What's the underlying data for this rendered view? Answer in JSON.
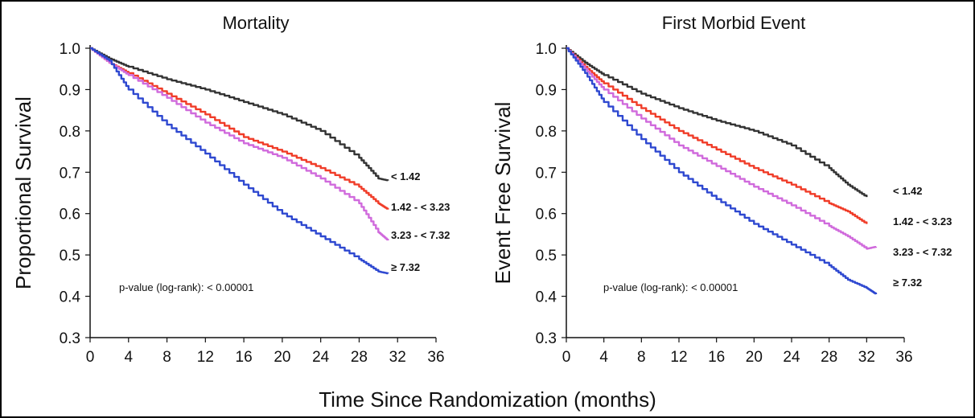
{
  "shared_xlabel": "Time Since Randomization (months)",
  "chart_data": [
    {
      "type": "line",
      "title": "Mortality",
      "xlabel": "Time Since Randomization (months)",
      "ylabel": "Proportional Survival",
      "xlim": [
        0,
        36
      ],
      "ylim": [
        0.3,
        1.0
      ],
      "xticks": [
        0,
        4,
        8,
        12,
        16,
        20,
        24,
        28,
        32,
        36
      ],
      "yticks": [
        "0.3",
        "0.4",
        "0.5",
        "0.6",
        "0.7",
        "0.8",
        "0.9",
        "1.0"
      ],
      "annotation": "p-value (log-rank): < 0.00001",
      "grid": false,
      "series": [
        {
          "name": "< 1.42",
          "color": "#333333",
          "x": [
            0,
            2,
            4,
            8,
            12,
            16,
            20,
            24,
            28,
            30,
            31
          ],
          "y": [
            1.0,
            0.975,
            0.955,
            0.925,
            0.9,
            0.87,
            0.84,
            0.8,
            0.735,
            0.685,
            0.68
          ]
        },
        {
          "name": "1.42 - < 3.23",
          "color": "#f03c28",
          "x": [
            0,
            2,
            4,
            8,
            12,
            16,
            20,
            24,
            28,
            30,
            31
          ],
          "y": [
            1.0,
            0.965,
            0.94,
            0.89,
            0.84,
            0.785,
            0.75,
            0.71,
            0.665,
            0.625,
            0.61
          ]
        },
        {
          "name": "3.23 - < 7.32",
          "color": "#d06adc",
          "x": [
            0,
            2,
            4,
            8,
            12,
            16,
            20,
            24,
            28,
            30,
            31
          ],
          "y": [
            1.0,
            0.965,
            0.935,
            0.88,
            0.82,
            0.77,
            0.735,
            0.685,
            0.625,
            0.555,
            0.535
          ]
        },
        {
          "name": "≥ 7.32",
          "color": "#2e48d0",
          "x": [
            0,
            2,
            4,
            8,
            12,
            16,
            20,
            24,
            28,
            30,
            31
          ],
          "y": [
            1.0,
            0.97,
            0.9,
            0.815,
            0.745,
            0.67,
            0.6,
            0.545,
            0.49,
            0.46,
            0.455
          ]
        }
      ]
    },
    {
      "type": "line",
      "title": "First Morbid Event",
      "xlabel": "Time Since Randomization (months)",
      "ylabel": "Event Free Survival",
      "xlim": [
        0,
        36
      ],
      "ylim": [
        0.3,
        1.0
      ],
      "xticks": [
        0,
        4,
        8,
        12,
        16,
        20,
        24,
        28,
        32,
        36
      ],
      "yticks": [
        "0.3",
        "0.4",
        "0.5",
        "0.6",
        "0.7",
        "0.8",
        "0.9",
        "1.0"
      ],
      "annotation": "p-value (log-rank): < 0.00001",
      "grid": false,
      "series": [
        {
          "name": "< 1.42",
          "color": "#333333",
          "x": [
            0,
            2,
            4,
            8,
            12,
            16,
            20,
            24,
            28,
            30,
            32
          ],
          "y": [
            1.0,
            0.965,
            0.935,
            0.89,
            0.855,
            0.825,
            0.8,
            0.765,
            0.71,
            0.67,
            0.64
          ]
        },
        {
          "name": "1.42 - < 3.23",
          "color": "#f03c28",
          "x": [
            0,
            2,
            4,
            8,
            12,
            16,
            20,
            24,
            28,
            30,
            32
          ],
          "y": [
            1.0,
            0.955,
            0.915,
            0.855,
            0.8,
            0.755,
            0.71,
            0.67,
            0.625,
            0.605,
            0.575
          ]
        },
        {
          "name": "3.23 - < 7.32",
          "color": "#d06adc",
          "x": [
            0,
            2,
            4,
            8,
            12,
            16,
            20,
            24,
            28,
            30,
            32,
            33
          ],
          "y": [
            1.0,
            0.95,
            0.9,
            0.83,
            0.765,
            0.715,
            0.665,
            0.62,
            0.57,
            0.545,
            0.515,
            0.52
          ]
        },
        {
          "name": "≥ 7.32",
          "color": "#2e48d0",
          "x": [
            0,
            2,
            4,
            8,
            12,
            16,
            20,
            24,
            28,
            30,
            32,
            33
          ],
          "y": [
            1.0,
            0.94,
            0.87,
            0.78,
            0.7,
            0.635,
            0.575,
            0.525,
            0.475,
            0.44,
            0.42,
            0.405
          ]
        }
      ]
    }
  ]
}
